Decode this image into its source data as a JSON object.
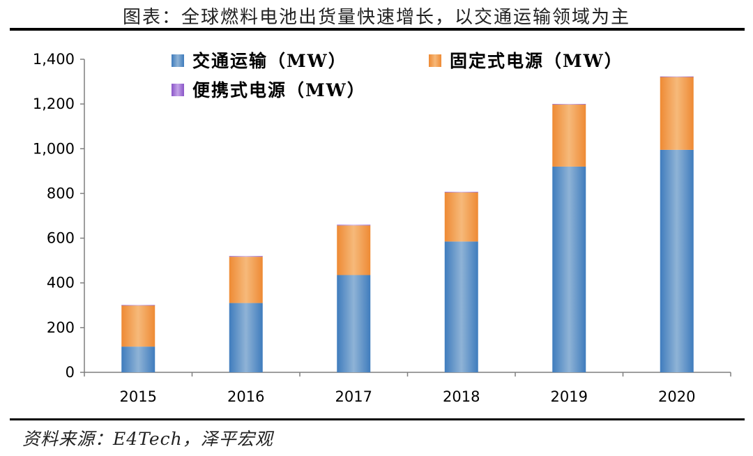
{
  "title": "图表：全球燃料电池出货量快速增长，以交通运输领域为主",
  "source": "资料来源：E4Tech，泽平宏观",
  "colors": {
    "transport": "#5b93c7",
    "stationary": "#f0a056",
    "portable": "#9b6fd0"
  },
  "chart_data": {
    "type": "bar",
    "stacked": true,
    "categories": [
      "2015",
      "2016",
      "2017",
      "2018",
      "2019",
      "2020"
    ],
    "series": [
      {
        "name": "交通运输（MW）",
        "values": [
          115,
          310,
          435,
          585,
          920,
          995
        ]
      },
      {
        "name": "固定式电源（MW）",
        "values": [
          185,
          207,
          222,
          220,
          278,
          326
        ]
      },
      {
        "name": "便携式电源（MW）",
        "values": [
          1,
          3,
          3,
          2,
          2,
          2
        ]
      }
    ],
    "ylim": [
      0,
      1400
    ],
    "yticks": [
      "0",
      "200",
      "400",
      "600",
      "800",
      "1,000",
      "1,200",
      "1,400"
    ],
    "legend_position": "top",
    "grid": false
  }
}
